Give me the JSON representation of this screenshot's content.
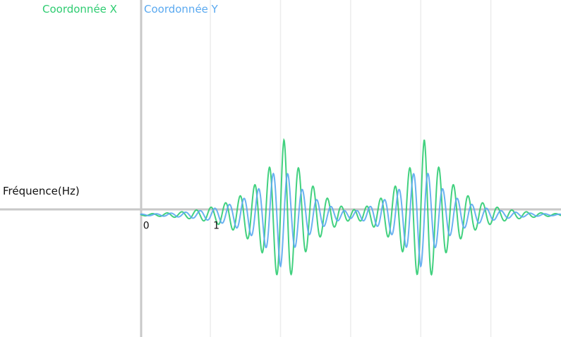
{
  "chart_data": {
    "type": "line",
    "title": "",
    "xlabel": "Fréquence(Hz)",
    "ylabel": "",
    "xlim": [
      -2,
      6
    ],
    "ylim": [
      -1.45,
      2.55
    ],
    "grid": true,
    "legend_placement": "top-left",
    "x_ticks": [
      {
        "value": 0,
        "label": "0"
      },
      {
        "value": 1,
        "label": "1"
      }
    ],
    "gridlines_x": [
      1,
      2,
      3,
      4,
      5
    ],
    "series": [
      {
        "name": "Coordonnée X",
        "color": "#2ecc71",
        "bursts": [
          {
            "center": 2.05,
            "amplitude": 0.9,
            "polarity": 1
          },
          {
            "center": 4.05,
            "amplitude": 0.9,
            "polarity": 1
          }
        ]
      },
      {
        "name": "Coordonnée Y",
        "color": "#5aa9f0",
        "bursts": [
          {
            "center": 2.0,
            "amplitude": 0.62,
            "polarity": -1
          },
          {
            "center": 4.0,
            "amplitude": 0.62,
            "polarity": -1
          }
        ]
      }
    ]
  }
}
